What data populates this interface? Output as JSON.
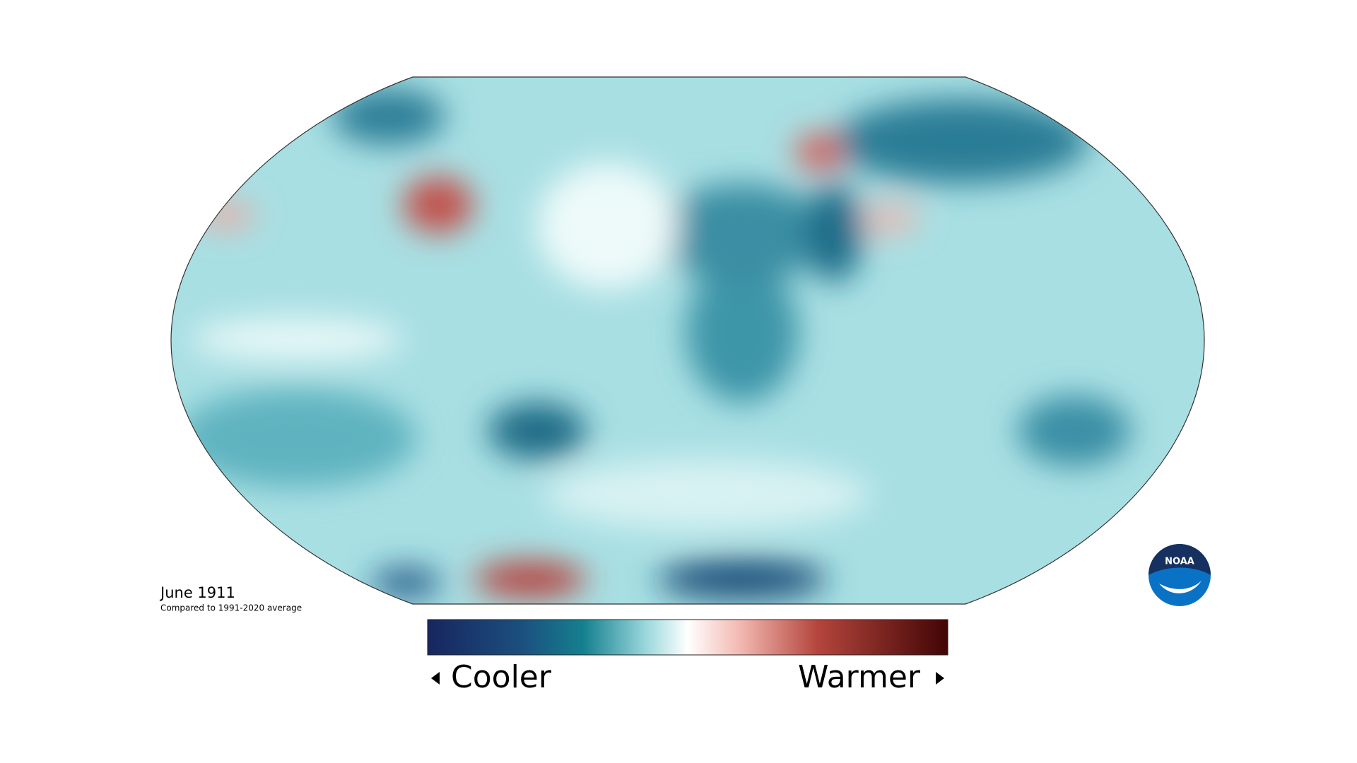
{
  "title": "June 1911",
  "subtitle": "Compared to 1991-2020 average",
  "legend": {
    "low": "Cooler",
    "high": "Warmer"
  },
  "logo": "NOAA"
}
